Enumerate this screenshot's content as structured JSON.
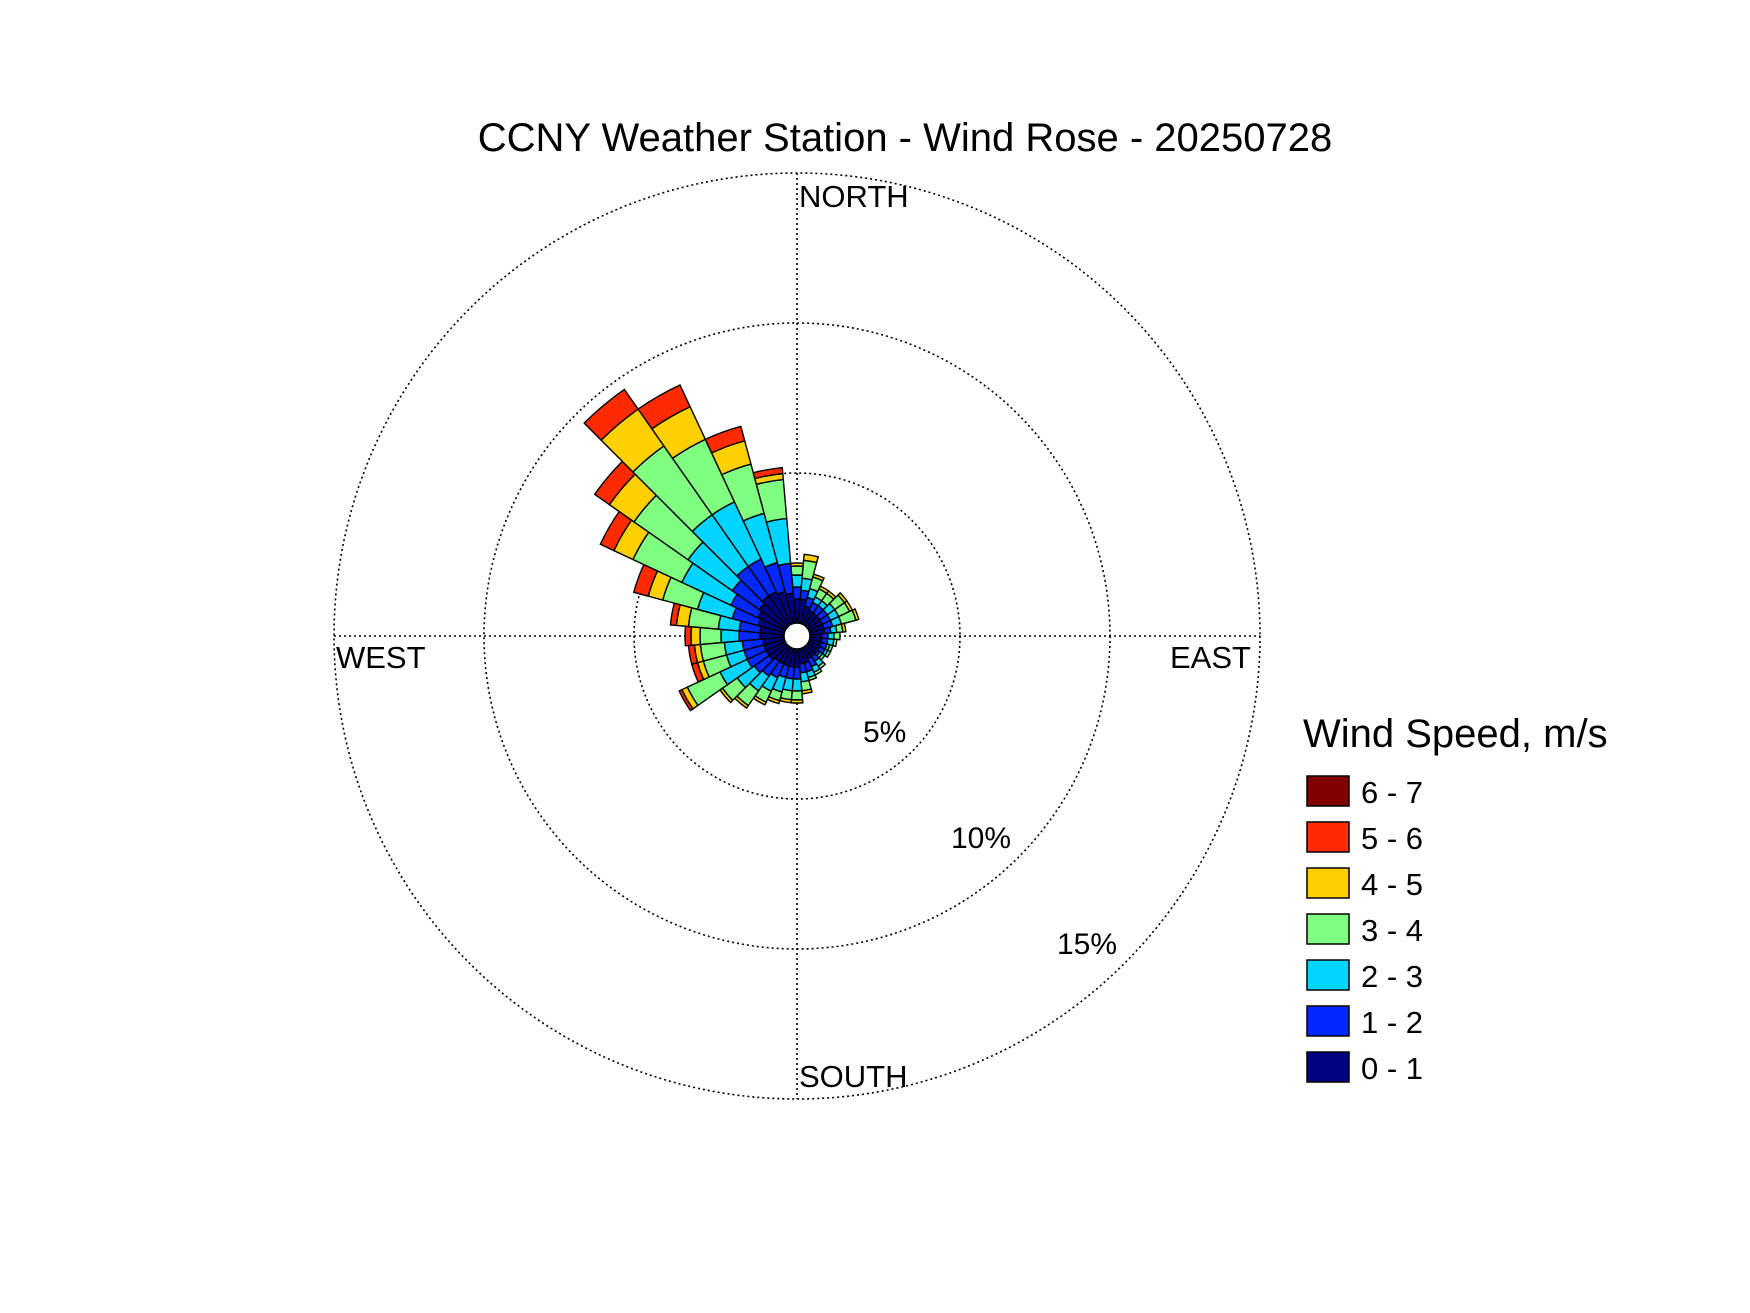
{
  "chart_data": {
    "type": "windrose",
    "title": "CCNY Weather Station - Wind Rose - 20250728",
    "direction_labels": {
      "north": "NORTH",
      "east": "EAST",
      "south": "SOUTH",
      "west": "WEST"
    },
    "radial_axis": {
      "unit": "%",
      "rings": [
        {
          "value": 5,
          "label": "5%"
        },
        {
          "value": 10,
          "label": "10%"
        },
        {
          "value": 15,
          "label": "15%"
        }
      ],
      "max": 15
    },
    "legend": {
      "title": "Wind Speed, m/s",
      "bins": [
        {
          "label": "6 - 7",
          "color": "#800000"
        },
        {
          "label": "5 - 6",
          "color": "#ff2a00"
        },
        {
          "label": "4 - 5",
          "color": "#ffd000"
        },
        {
          "label": "3 - 4",
          "color": "#80ff80"
        },
        {
          "label": "2 - 3",
          "color": "#00d4ff"
        },
        {
          "label": "1 - 2",
          "color": "#0028ff"
        },
        {
          "label": "0 - 1",
          "color": "#000080"
        }
      ]
    },
    "sector_width_deg": 10,
    "note_units": "cumulative frequency (%) at top of each speed bin, per 10-degree direction sector",
    "sectors": [
      {
        "dir": 0,
        "cum": [
          0.8,
          1.2,
          1.6,
          1.9,
          2.0,
          2.0,
          2.0
        ]
      },
      {
        "dir": 10,
        "cum": [
          0.8,
          1.1,
          1.5,
          2.1,
          2.3,
          2.3,
          2.3
        ]
      },
      {
        "dir": 20,
        "cum": [
          0.6,
          0.9,
          1.2,
          1.6,
          1.7,
          1.7,
          1.7
        ]
      },
      {
        "dir": 30,
        "cum": [
          0.5,
          0.8,
          1.0,
          1.3,
          1.4,
          1.4,
          1.4
        ]
      },
      {
        "dir": 40,
        "cum": [
          0.5,
          0.8,
          1.0,
          1.3,
          1.4,
          1.4,
          1.4
        ]
      },
      {
        "dir": 50,
        "cum": [
          0.5,
          0.8,
          1.1,
          1.5,
          1.6,
          1.6,
          1.6
        ]
      },
      {
        "dir": 60,
        "cum": [
          0.5,
          0.8,
          1.1,
          1.5,
          1.6,
          1.6,
          1.6
        ]
      },
      {
        "dir": 70,
        "cum": [
          0.5,
          0.8,
          1.1,
          1.6,
          1.7,
          1.7,
          1.7
        ]
      },
      {
        "dir": 80,
        "cum": [
          0.5,
          0.7,
          0.9,
          1.1,
          1.2,
          1.2,
          1.2
        ]
      },
      {
        "dir": 90,
        "cum": [
          0.4,
          0.6,
          0.8,
          1.0,
          1.0,
          1.0,
          1.0
        ]
      },
      {
        "dir": 100,
        "cum": [
          0.4,
          0.6,
          0.8,
          0.9,
          0.9,
          0.9,
          0.9
        ]
      },
      {
        "dir": 110,
        "cum": [
          0.4,
          0.6,
          0.7,
          0.8,
          0.8,
          0.8,
          0.8
        ]
      },
      {
        "dir": 120,
        "cum": [
          0.4,
          0.6,
          0.7,
          0.8,
          0.8,
          0.8,
          0.8
        ]
      },
      {
        "dir": 130,
        "cum": [
          0.4,
          0.5,
          0.6,
          0.7,
          0.7,
          0.7,
          0.7
        ]
      },
      {
        "dir": 140,
        "cum": [
          0.4,
          0.6,
          0.8,
          0.9,
          0.9,
          0.9,
          0.9
        ]
      },
      {
        "dir": 150,
        "cum": [
          0.4,
          0.7,
          0.9,
          1.0,
          1.0,
          1.0,
          1.0
        ]
      },
      {
        "dir": 160,
        "cum": [
          0.5,
          0.8,
          1.0,
          1.1,
          1.1,
          1.1,
          1.1
        ]
      },
      {
        "dir": 170,
        "cum": [
          0.5,
          0.8,
          1.1,
          1.4,
          1.5,
          1.5,
          1.5
        ]
      },
      {
        "dir": 180,
        "cum": [
          0.6,
          1.0,
          1.4,
          1.7,
          1.8,
          1.8,
          1.8
        ]
      },
      {
        "dir": 190,
        "cum": [
          0.6,
          1.0,
          1.4,
          1.7,
          1.8,
          1.8,
          1.8
        ]
      },
      {
        "dir": 200,
        "cum": [
          0.6,
          1.0,
          1.5,
          1.8,
          1.9,
          1.9,
          1.9
        ]
      },
      {
        "dir": 210,
        "cum": [
          0.6,
          1.1,
          1.6,
          2.0,
          2.1,
          2.1,
          2.1
        ]
      },
      {
        "dir": 220,
        "cum": [
          0.6,
          1.2,
          1.8,
          2.4,
          2.5,
          2.5,
          2.5
        ]
      },
      {
        "dir": 230,
        "cum": [
          0.7,
          1.3,
          2.0,
          2.6,
          2.7,
          2.7,
          2.7
        ]
      },
      {
        "dir": 240,
        "cum": [
          0.7,
          1.4,
          2.4,
          3.6,
          3.8,
          3.9,
          3.9
        ]
      },
      {
        "dir": 250,
        "cum": [
          0.7,
          1.4,
          2.0,
          2.8,
          3.0,
          3.2,
          3.2
        ]
      },
      {
        "dir": 260,
        "cum": [
          0.7,
          1.4,
          2.0,
          2.8,
          3.0,
          3.2,
          3.2
        ]
      },
      {
        "dir": 270,
        "cum": [
          0.8,
          1.5,
          2.1,
          2.8,
          3.1,
          3.3,
          3.3
        ]
      },
      {
        "dir": 280,
        "cum": [
          0.8,
          1.5,
          2.2,
          3.2,
          3.6,
          3.8,
          3.8
        ]
      },
      {
        "dir": 290,
        "cum": [
          0.9,
          1.8,
          3.0,
          4.2,
          4.7,
          5.2,
          5.2
        ]
      },
      {
        "dir": 300,
        "cum": [
          1.0,
          2.0,
          3.8,
          5.6,
          6.3,
          6.8,
          6.8
        ]
      },
      {
        "dir": 310,
        "cum": [
          1.1,
          2.2,
          4.0,
          6.2,
          7.2,
          7.8,
          7.8
        ]
      },
      {
        "dir": 320,
        "cum": [
          1.2,
          2.4,
          4.5,
          7.3,
          8.8,
          9.6,
          9.6
        ]
      },
      {
        "dir": 330,
        "cum": [
          1.2,
          2.4,
          4.5,
          6.8,
          8.0,
          8.8,
          8.8
        ]
      },
      {
        "dir": 340,
        "cum": [
          1.1,
          2.1,
          3.8,
          5.5,
          6.3,
          6.8,
          6.8
        ]
      },
      {
        "dir": 350,
        "cum": [
          1.0,
          2.0,
          3.5,
          4.8,
          5.0,
          5.2,
          5.2
        ]
      }
    ]
  }
}
